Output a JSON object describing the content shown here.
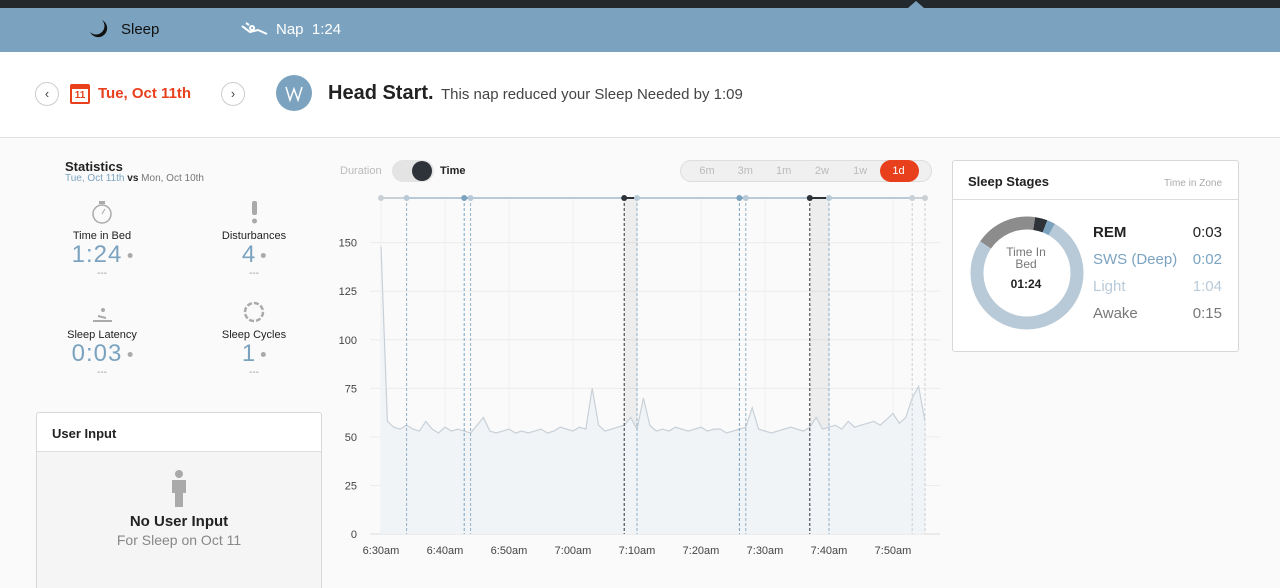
{
  "tabs": [
    {
      "label": "Sleep"
    },
    {
      "label": "Nap",
      "value": "1:24"
    }
  ],
  "header": {
    "date": "Tue, Oct 11th",
    "calendar_day": "11",
    "title": "Head Start.",
    "message": "This nap reduced your Sleep Needed by 1:09"
  },
  "statistics": {
    "title": "Statistics",
    "date": "Tue, Oct 11th",
    "vs": "vs",
    "compare_date": "Mon, Oct 10th",
    "items": [
      {
        "label": "Time in Bed",
        "value": "1:24",
        "compare": "---"
      },
      {
        "label": "Disturbances",
        "value": "4",
        "compare": "---"
      },
      {
        "label": "Sleep Latency",
        "value": "0:03",
        "compare": "---"
      },
      {
        "label": "Sleep Cycles",
        "value": "1",
        "compare": "---"
      }
    ]
  },
  "user_input": {
    "title": "User Input",
    "empty": "No User Input",
    "subtitle": "For Sleep on Oct 11"
  },
  "controls": {
    "toggle": [
      "Duration",
      "Time"
    ],
    "ranges": [
      "6m",
      "3m",
      "1m",
      "2w",
      "1w",
      "1d"
    ],
    "active_range": 5
  },
  "chart_data": {
    "type": "line",
    "color": "#c8d0d8",
    "area_color": "#f1f4f7",
    "grid": true,
    "x": [
      "6:30am",
      "6:31am",
      "6:32am",
      "6:33am",
      "6:34am",
      "6:35am",
      "6:36am",
      "6:37am",
      "6:38am",
      "6:39am",
      "6:40am",
      "6:41am",
      "6:42am",
      "6:43am",
      "6:44am",
      "6:45am",
      "6:46am",
      "6:47am",
      "6:48am",
      "6:49am",
      "6:50am",
      "6:51am",
      "6:52am",
      "6:53am",
      "6:54am",
      "6:55am",
      "6:56am",
      "6:57am",
      "6:58am",
      "6:59am",
      "7:00am",
      "7:01am",
      "7:02am",
      "7:03am",
      "7:04am",
      "7:05am",
      "7:06am",
      "7:07am",
      "7:08am",
      "7:09am",
      "7:10am",
      "7:11am",
      "7:12am",
      "7:13am",
      "7:14am",
      "7:15am",
      "7:16am",
      "7:17am",
      "7:18am",
      "7:19am",
      "7:20am",
      "7:21am",
      "7:22am",
      "7:23am",
      "7:24am",
      "7:25am",
      "7:26am",
      "7:27am",
      "7:28am",
      "7:29am",
      "7:30am",
      "7:31am",
      "7:32am",
      "7:33am",
      "7:34am",
      "7:35am",
      "7:36am",
      "7:37am",
      "7:38am",
      "7:39am",
      "7:40am",
      "7:41am",
      "7:42am",
      "7:43am",
      "7:44am",
      "7:45am",
      "7:46am",
      "7:47am",
      "7:48am",
      "7:49am",
      "7:50am",
      "7:51am",
      "7:52am",
      "7:53am",
      "7:54am",
      "7:55am"
    ],
    "values": [
      148,
      58,
      55,
      54,
      56,
      54,
      53,
      58,
      54,
      52,
      55,
      53,
      54,
      53,
      52,
      56,
      60,
      53,
      52,
      53,
      54,
      52,
      53,
      52,
      53,
      54,
      52,
      53,
      55,
      54,
      53,
      55,
      54,
      75,
      56,
      53,
      54,
      55,
      56,
      60,
      54,
      70,
      56,
      53,
      54,
      53,
      55,
      54,
      53,
      54,
      55,
      53,
      54,
      54,
      52,
      53,
      54,
      55,
      65,
      54,
      53,
      52,
      53,
      54,
      55,
      54,
      53,
      55,
      60,
      54,
      55,
      56,
      54,
      58,
      55,
      56,
      57,
      58,
      56,
      59,
      62,
      57,
      60,
      70,
      76,
      58
    ],
    "xlim": [
      "6:30am",
      "7:57am"
    ],
    "xticks": [
      "6:30am",
      "6:40am",
      "6:50am",
      "7:00am",
      "7:10am",
      "7:20am",
      "7:30am",
      "7:40am",
      "7:50am"
    ],
    "ylim": [
      0,
      173
    ],
    "yticks": [
      0,
      25,
      50,
      75,
      100,
      125,
      150
    ],
    "stage_lines": [
      {
        "x": "6:30am",
        "color": "#c9d0d6"
      },
      {
        "x": "6:34am",
        "color": "#b8cad8"
      },
      {
        "x": "6:43am",
        "color": "#7ba3c0"
      },
      {
        "x": "6:44am",
        "color": "#b8cad8"
      },
      {
        "x": "7:08am",
        "color": "#2d3339"
      },
      {
        "x": "7:10am",
        "color": "#b8cad8"
      },
      {
        "x": "7:26am",
        "color": "#7ba3c0"
      },
      {
        "x": "7:27am",
        "color": "#b8cad8"
      },
      {
        "x": "7:37am",
        "color": "#2d3339"
      },
      {
        "x": "7:40am",
        "color": "#b8cad8"
      },
      {
        "x": "7:53am",
        "color": "#c9d0d6"
      },
      {
        "x": "7:55am",
        "color": "#c9d0d6"
      }
    ]
  },
  "sleep_stages": {
    "title": "Sleep Stages",
    "subtitle": "Time in Zone",
    "center_label": "Time In Bed",
    "center_value": "01:24",
    "stages": [
      {
        "name": "Awake",
        "value": "0:15",
        "color": "#8c8c8c"
      },
      {
        "name": "REM",
        "value": "0:03",
        "color": "#2d3339"
      },
      {
        "name": "SWS (Deep)",
        "value": "0:02",
        "color": "#7ba3c0"
      },
      {
        "name": "Light",
        "value": "1:04",
        "color": "#b8cad8"
      }
    ]
  }
}
